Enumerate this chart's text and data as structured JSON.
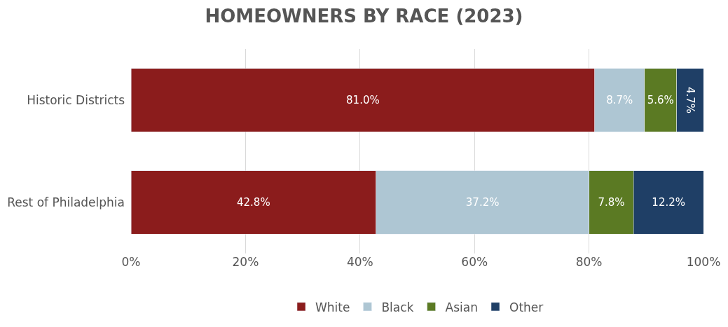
{
  "chart_data": {
    "type": "bar",
    "title": "HOMEOWNERS BY RACE (2023)",
    "orientation": "horizontal",
    "stacked": true,
    "categories": [
      "Historic Districts",
      "Rest of Philadelphia"
    ],
    "series": [
      {
        "name": "White",
        "color": "#8b1c1c",
        "values": [
          81.0,
          42.8
        ],
        "value_labels": [
          "81.0%",
          "42.8%"
        ]
      },
      {
        "name": "Black",
        "color": "#aec6d3",
        "values": [
          8.7,
          37.2
        ],
        "value_labels": [
          "8.7%",
          "37.2%"
        ]
      },
      {
        "name": "Asian",
        "color": "#5b7a23",
        "values": [
          5.6,
          7.8
        ],
        "value_labels": [
          "5.6%",
          "7.8%"
        ]
      },
      {
        "name": "Other",
        "color": "#1f3f66",
        "values": [
          4.7,
          12.2
        ],
        "value_labels": [
          "4.7%",
          "12.2%"
        ]
      }
    ],
    "xlim": [
      0,
      100
    ],
    "xticks": [
      {
        "value": 0,
        "label": "0%"
      },
      {
        "value": 20,
        "label": "20%"
      },
      {
        "value": 40,
        "label": "40%"
      },
      {
        "value": 60,
        "label": "60%"
      },
      {
        "value": 80,
        "label": "80%"
      },
      {
        "value": 100,
        "label": "100%"
      }
    ],
    "grid": "x",
    "legend": "bottom"
  }
}
